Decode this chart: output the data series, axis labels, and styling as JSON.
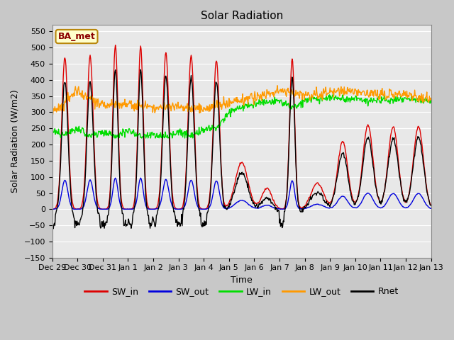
{
  "title": "Solar Radiation",
  "xlabel": "Time",
  "ylabel": "Solar Radiation (W/m2)",
  "annotation": "BA_met",
  "ylim": [
    -150,
    570
  ],
  "yticks": [
    -150,
    -100,
    -50,
    0,
    50,
    100,
    150,
    200,
    250,
    300,
    350,
    400,
    450,
    500,
    550
  ],
  "series": {
    "SW_in": {
      "color": "#dd0000",
      "lw": 1.0
    },
    "SW_out": {
      "color": "#0000dd",
      "lw": 1.0
    },
    "LW_in": {
      "color": "#00dd00",
      "lw": 1.0
    },
    "LW_out": {
      "color": "#ff9900",
      "lw": 1.0
    },
    "Rnet": {
      "color": "#000000",
      "lw": 1.0
    }
  },
  "start_day": -2,
  "end_day": 13,
  "xtick_labels": [
    "Dec 29",
    "Dec 30",
    "Dec 31",
    "Jan 1",
    "Jan 2",
    "Jan 3",
    "Jan 4",
    "Jan 5",
    "Jan 6",
    "Jan 7",
    "Jan 8",
    "Jan 9",
    "Jan 10",
    "Jan 11",
    "Jan 12",
    "Jan 13"
  ],
  "xtick_positions": [
    -2,
    -1,
    0,
    1,
    2,
    3,
    4,
    5,
    6,
    7,
    8,
    9,
    10,
    11,
    12,
    13
  ],
  "fig_bg": "#c8c8c8",
  "ax_bg": "#e8e8e8",
  "grid_color": "#ffffff",
  "figsize": [
    6.4,
    4.8
  ],
  "dpi": 100
}
